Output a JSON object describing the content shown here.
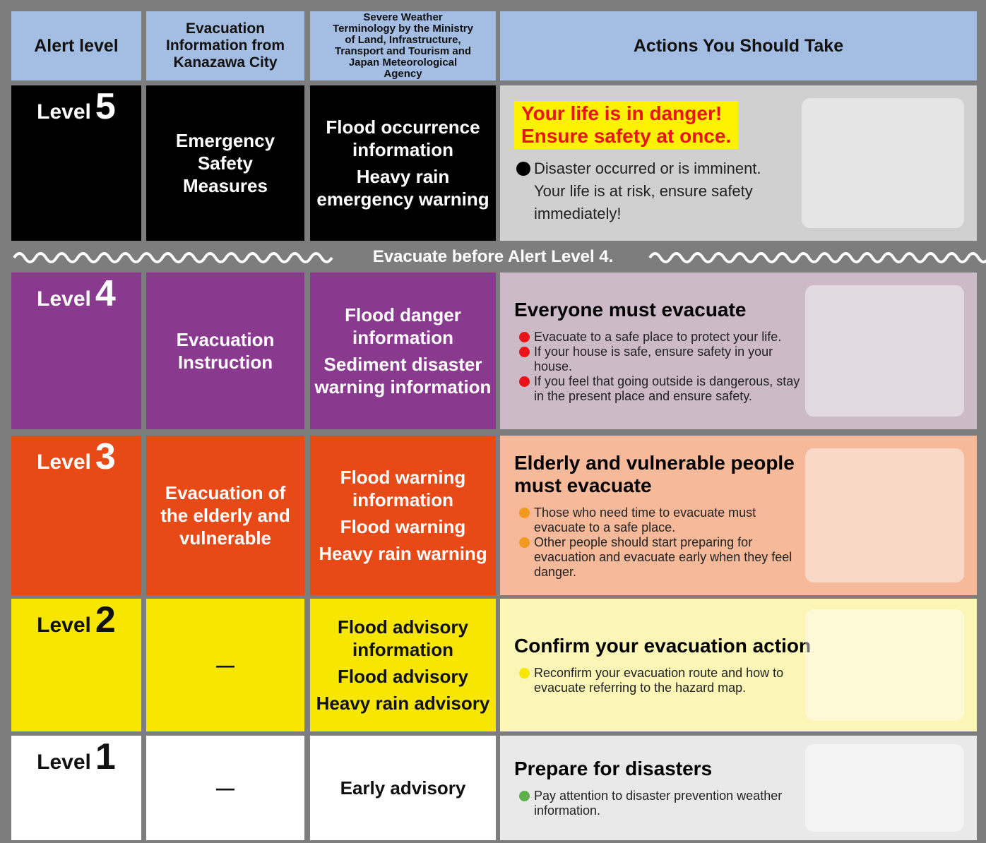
{
  "header": {
    "columns": [
      "Alert level",
      "Evacuation Information from Kanazawa City",
      "Severe Weather Terminology by the Ministry of Land, Infrastructure, Transport and Tourism and Japan Meteorological Agency",
      "Actions You Should Take"
    ]
  },
  "banner": "Evacuate before Alert Level 4.",
  "levels": [
    {
      "label": "Level",
      "number": "5",
      "evacuation_info": "Emergency Safety Measures",
      "terminology": [
        "Flood occurrence information",
        "Heavy rain emergency warning"
      ],
      "headline": [
        "Your life is in danger!",
        "Ensure safety at once."
      ],
      "bullets": [
        "Disaster occurred or is imminent. Your life is at risk, ensure safety immediately!"
      ]
    },
    {
      "label": "Level",
      "number": "4",
      "evacuation_info": "Evacuation Instruction",
      "terminology": [
        "Flood danger information",
        "Sediment disaster warning information"
      ],
      "headline": [
        "Everyone must evacuate"
      ],
      "bullets": [
        "Evacuate to a safe place to protect your life.",
        "If your house is safe, ensure safety in your house.",
        "If you feel that going outside is dangerous, stay in the present place and ensure safety."
      ]
    },
    {
      "label": "Level",
      "number": "3",
      "evacuation_info": "Evacuation of the elderly and vulnerable",
      "terminology": [
        "Flood warning information",
        "Flood warning",
        "Heavy rain warning"
      ],
      "headline": [
        "Elderly and vulnerable people must evacuate"
      ],
      "bullets": [
        "Those who need time to evacuate must evacuate to a safe place.",
        "Other people should start preparing for evacuation and evacuate early when they feel danger."
      ]
    },
    {
      "label": "Level",
      "number": "2",
      "evacuation_info": "—",
      "terminology": [
        "Flood advisory information",
        "Flood advisory",
        "Heavy rain advisory"
      ],
      "headline": [
        "Confirm your evacuation action"
      ],
      "bullets": [
        "Reconfirm your evacuation route and how to evacuate referring to the hazard map."
      ]
    },
    {
      "label": "Level",
      "number": "1",
      "evacuation_info": "—",
      "terminology": [
        "Early advisory"
      ],
      "headline": [
        "Prepare for disasters"
      ],
      "bullets": [
        "Pay attention to disaster prevention weather information."
      ]
    }
  ]
}
